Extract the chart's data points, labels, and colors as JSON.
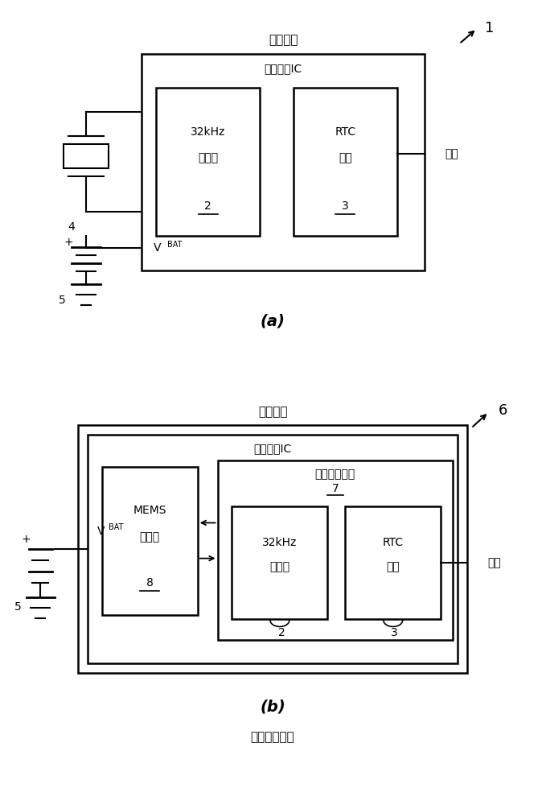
{
  "bg_color": "#ffffff",
  "fig_width": 6.79,
  "fig_height": 10.0,
  "a_rtc_outer_label": "实时时钟",
  "a_ic_label": "实时时钟IC",
  "a_osc_label1": "32kHz",
  "a_osc_label2": "振荡器",
  "a_osc_num": "2",
  "a_rtc_label1": "RTC",
  "a_rtc_label2": "电路",
  "a_rtc_num": "3",
  "a_clock_label": "时钟",
  "a_vbat_label": "V",
  "a_vbat_sub": "BAT",
  "a_num": "1",
  "a_xtal_num": "4",
  "a_bat_num": "5",
  "a_caption": "(a)",
  "b_rtc_outer_label": "实时时钟",
  "b_ic_label": "实时时钟IC",
  "b_chip_label": "实时时钟芯片",
  "b_chip_num": "7",
  "b_mems_label1": "MEMS",
  "b_mems_label2": "谐振器",
  "b_mems_num": "8",
  "b_osc_label1": "32kHz",
  "b_osc_label2": "振荡器",
  "b_osc_num": "2",
  "b_rtc_label1": "RTC",
  "b_rtc_label2": "电路",
  "b_rtc_num": "3",
  "b_clock_label": "时钟",
  "b_vbat_label": "V",
  "b_vbat_sub": "BAT",
  "b_num": "6",
  "b_bat_num": "5",
  "b_caption": "(b)",
  "bottom_label": "（现有技术）"
}
